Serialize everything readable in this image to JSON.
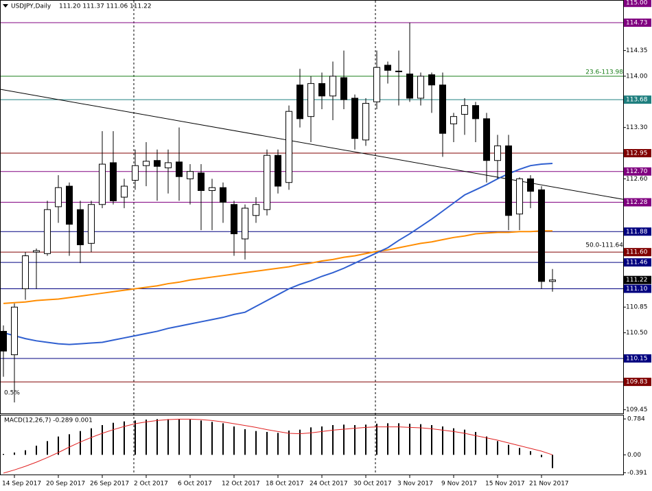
{
  "chart_data": [
    {
      "type": "candlestick",
      "title": "USDJPY,Daily",
      "ohlc_header": "111.20 111.37 111.06 111.22",
      "categories": [
        null,
        "14 Sep 2017",
        null,
        null,
        null,
        "20 Sep 2017",
        null,
        null,
        null,
        "26 Sep 2017",
        null,
        null,
        null,
        "2 Oct 2017",
        null,
        null,
        null,
        "6 Oct 2017",
        null,
        null,
        null,
        "12 Oct 2017",
        null,
        null,
        null,
        "18 Oct 2017",
        null,
        null,
        null,
        "24 Oct 2017",
        null,
        null,
        null,
        "30 Oct 2017",
        null,
        null,
        null,
        "3 Nov 2017",
        null,
        null,
        null,
        "9 Nov 2017",
        null,
        null,
        null,
        "15 Nov 2017",
        null,
        null,
        null,
        "21 Nov 2017",
        null
      ],
      "open": [
        110.52,
        110.2,
        111.1,
        111.6,
        111.58,
        112.22,
        112.5,
        112.18,
        111.72,
        112.25,
        112.82,
        112.35,
        112.58,
        112.78,
        112.85,
        112.75,
        112.83,
        112.6,
        112.68,
        112.44,
        112.48,
        112.25,
        111.78,
        112.1,
        112.18,
        112.92,
        112.55,
        113.88,
        113.45,
        113.9,
        113.73,
        113.98,
        113.7,
        113.13,
        113.65,
        114.15,
        114.07,
        114.03,
        113.7,
        114.02,
        113.88,
        113.35,
        113.48,
        113.6,
        113.42,
        112.85,
        113.05,
        112.12,
        112.6,
        112.45,
        111.2
      ],
      "high": [
        110.6,
        110.9,
        111.6,
        111.65,
        112.3,
        112.65,
        112.55,
        112.3,
        112.3,
        113.25,
        113.25,
        112.6,
        113.0,
        113.1,
        113.0,
        113.0,
        113.3,
        112.8,
        112.8,
        112.6,
        112.55,
        112.3,
        112.25,
        112.35,
        113.0,
        113.0,
        113.6,
        114.1,
        114.0,
        114.05,
        114.2,
        114.35,
        113.75,
        113.7,
        114.35,
        114.2,
        114.35,
        114.73,
        114.05,
        114.05,
        114.05,
        113.5,
        113.7,
        113.65,
        113.5,
        113.2,
        113.2,
        112.62,
        112.65,
        112.5,
        111.37
      ],
      "low": [
        109.9,
        109.55,
        110.95,
        111.1,
        111.55,
        112.0,
        111.55,
        111.45,
        111.6,
        112.2,
        112.25,
        112.2,
        112.45,
        112.5,
        112.3,
        112.4,
        112.3,
        112.25,
        111.9,
        111.9,
        112.0,
        111.55,
        111.5,
        112.0,
        112.1,
        112.4,
        112.45,
        113.3,
        113.1,
        113.55,
        113.4,
        113.55,
        113.0,
        113.05,
        113.55,
        113.9,
        113.6,
        113.65,
        113.6,
        113.5,
        112.9,
        113.1,
        113.2,
        113.1,
        112.55,
        112.6,
        111.9,
        111.9,
        112.2,
        111.1,
        111.06
      ],
      "close": [
        110.25,
        110.85,
        111.55,
        111.62,
        112.18,
        112.48,
        111.98,
        111.7,
        112.25,
        112.8,
        112.3,
        112.5,
        112.78,
        112.84,
        112.77,
        112.82,
        112.63,
        112.7,
        112.44,
        112.48,
        112.28,
        111.85,
        112.2,
        112.25,
        112.92,
        112.5,
        113.52,
        113.42,
        113.9,
        113.73,
        114.0,
        113.68,
        113.15,
        113.63,
        114.12,
        114.08,
        114.06,
        113.7,
        114.0,
        113.88,
        113.22,
        113.45,
        113.6,
        113.42,
        112.85,
        113.05,
        112.1,
        112.6,
        112.43,
        111.2,
        111.22
      ],
      "lines": [
        {
          "color": "#ff8c00",
          "values": [
            110.9,
            110.91,
            110.92,
            110.94,
            110.95,
            110.96,
            110.98,
            111.0,
            111.02,
            111.04,
            111.06,
            111.08,
            111.1,
            111.12,
            111.14,
            111.17,
            111.19,
            111.22,
            111.24,
            111.26,
            111.28,
            111.3,
            111.32,
            111.34,
            111.36,
            111.38,
            111.4,
            111.43,
            111.45,
            111.48,
            111.5,
            111.53,
            111.55,
            111.58,
            111.61,
            111.63,
            111.66,
            111.69,
            111.72,
            111.74,
            111.77,
            111.8,
            111.82,
            111.85,
            111.86,
            111.87,
            111.87,
            111.88,
            111.88,
            111.89,
            111.89
          ]
        },
        {
          "color": "#2f5fd0",
          "values": [
            110.5,
            110.46,
            110.42,
            110.39,
            110.37,
            110.35,
            110.34,
            110.35,
            110.36,
            110.37,
            110.4,
            110.43,
            110.46,
            110.49,
            110.52,
            110.56,
            110.59,
            110.62,
            110.65,
            110.68,
            110.71,
            110.75,
            110.78,
            110.86,
            110.94,
            111.02,
            111.1,
            111.16,
            111.21,
            111.27,
            111.32,
            111.38,
            111.45,
            111.52,
            111.59,
            111.66,
            111.76,
            111.85,
            111.95,
            112.05,
            112.16,
            112.27,
            112.38,
            112.45,
            112.52,
            112.6,
            112.67,
            112.73,
            112.78,
            112.8,
            112.81
          ]
        }
      ],
      "trendline": {
        "color": "#000000",
        "values": [
          113.82,
          112.32
        ]
      },
      "ylim": [
        109.4,
        115.03
      ],
      "yticks": [
        114.35,
        {
          "value": 114.0,
          "label": "114.00"
        },
        {
          "value": 113.3,
          "label": "113.30"
        },
        {
          "value": 112.6,
          "label": "112.60"
        },
        110.85,
        {
          "value": 110.5,
          "label": "110.50"
        },
        109.45
      ],
      "levels": [
        {
          "value": 115.0,
          "label": "115.00",
          "color": "#800080",
          "line": false
        },
        {
          "value": 114.73,
          "label": "114.73",
          "color": "#800080",
          "line": true
        },
        {
          "value": 113.68,
          "label": "113.68",
          "color": "#1f7f7f",
          "line": true
        },
        {
          "value": 112.95,
          "label": "112.95",
          "color": "#800000",
          "line": true
        },
        {
          "value": 112.7,
          "label": "112.70",
          "color": "#800080",
          "line": true
        },
        {
          "value": 112.28,
          "label": "112.28",
          "color": "#800080",
          "line": true
        },
        {
          "value": 111.88,
          "label": "111.88",
          "color": "#000080",
          "line": true
        },
        {
          "value": 111.6,
          "label": "111.60",
          "color": "#800000",
          "line": true
        },
        {
          "value": 111.46,
          "label": "111.46",
          "color": "#000080",
          "line": true
        },
        {
          "value": 111.22,
          "label": "111.22",
          "color": "#000000",
          "line": false
        },
        {
          "value": 111.1,
          "label": "111.10",
          "color": "#000080",
          "line": true
        },
        {
          "value": 110.15,
          "label": "110.15",
          "color": "#000080",
          "line": true
        },
        {
          "value": 109.83,
          "label": "109.83",
          "color": "#800000",
          "line": true
        }
      ],
      "fib_line": {
        "value": 114.0,
        "color": "#1a7f1a"
      },
      "annotations": [
        "23.6-113.98",
        "50.0-111.64",
        "0.5%"
      ]
    },
    {
      "type": "macd",
      "title": "MACD(12,26,7) -0.289 0.001",
      "values": [
        0.02,
        0.05,
        0.1,
        0.2,
        0.3,
        0.4,
        0.45,
        0.52,
        0.58,
        0.65,
        0.7,
        0.73,
        0.75,
        0.77,
        0.78,
        0.78,
        0.78,
        0.77,
        0.75,
        0.72,
        0.69,
        0.62,
        0.56,
        0.52,
        0.5,
        0.48,
        0.53,
        0.55,
        0.6,
        0.62,
        0.65,
        0.66,
        0.65,
        0.66,
        0.68,
        0.69,
        0.69,
        0.68,
        0.67,
        0.65,
        0.62,
        0.58,
        0.55,
        0.5,
        0.4,
        0.3,
        0.22,
        0.15,
        0.08,
        -0.05,
        -0.29
      ],
      "color": "#000000",
      "signal": {
        "color": "#e02020",
        "values": [
          -0.4,
          -0.33,
          -0.25,
          -0.16,
          -0.06,
          0.05,
          0.17,
          0.28,
          0.38,
          0.47,
          0.55,
          0.62,
          0.68,
          0.72,
          0.75,
          0.77,
          0.78,
          0.78,
          0.77,
          0.75,
          0.72,
          0.68,
          0.64,
          0.6,
          0.55,
          0.51,
          0.47,
          0.46,
          0.48,
          0.51,
          0.54,
          0.56,
          0.58,
          0.6,
          0.61,
          0.61,
          0.61,
          0.6,
          0.59,
          0.57,
          0.54,
          0.51,
          0.47,
          0.42,
          0.37,
          0.32,
          0.26,
          0.2,
          0.14,
          0.08,
          0.0
        ]
      },
      "ylim": [
        -0.43,
        0.86
      ],
      "yticks": [
        0.784,
        {
          "value": 0,
          "label": "0.00"
        },
        -0.391
      ]
    }
  ]
}
